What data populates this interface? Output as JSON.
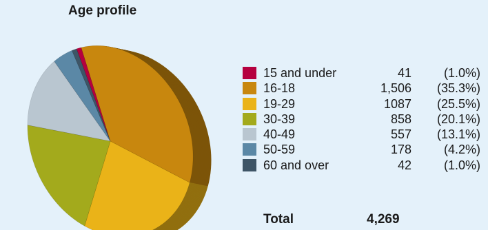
{
  "chart_data": {
    "type": "pie",
    "title": "Age profile",
    "slices": [
      {
        "label": "15 and under",
        "count": "41",
        "value": 41,
        "percent": "(1.0%)",
        "color": "#b5003f"
      },
      {
        "label": "16-18",
        "count": "1,506",
        "value": 1506,
        "percent": "(35.3%)",
        "color": "#c8870e"
      },
      {
        "label": "19-29",
        "count": "1087",
        "value": 1087,
        "percent": "(25.5%)",
        "color": "#eab318"
      },
      {
        "label": "30-39",
        "count": "858",
        "value": 858,
        "percent": "(20.1%)",
        "color": "#a3aa1c"
      },
      {
        "label": "40-49",
        "count": "557",
        "value": 557,
        "percent": "(13.1%)",
        "color": "#b9c6d0"
      },
      {
        "label": "50-59",
        "count": "178",
        "value": 178,
        "percent": "(4.2%)",
        "color": "#5b88a6"
      },
      {
        "label": "60 and over",
        "count": "42",
        "value": 42,
        "percent": "(1.0%)",
        "color": "#3e5566"
      }
    ],
    "total_label": "Total",
    "total_value": "4,269",
    "rendering": "3d-pie",
    "legend_position": "right"
  }
}
